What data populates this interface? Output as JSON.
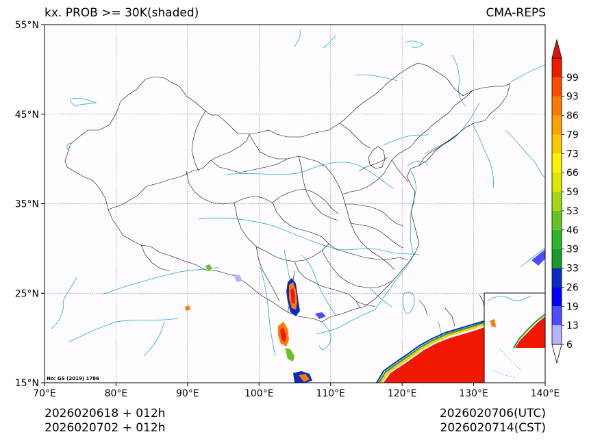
{
  "title_left": "kx. PROB >= 30K(shaded)",
  "title_right": "CMA-REPS",
  "map": {
    "lon_range": [
      70,
      140
    ],
    "lat_range": [
      15,
      55
    ],
    "lon_ticks": [
      "70°E",
      "80°E",
      "90°E",
      "100°E",
      "110°E",
      "120°E",
      "130°E",
      "140°E"
    ],
    "lat_ticks": [
      "15°N",
      "25°N",
      "35°N",
      "45°N",
      "55°N"
    ],
    "credit": "No: GS (2019) 1786",
    "border_color": "#000000",
    "river_color": "#1ea7d9",
    "grid_color": "#888888"
  },
  "colorbar": {
    "labels": [
      "6",
      "13",
      "19",
      "26",
      "33",
      "39",
      "46",
      "53",
      "59",
      "66",
      "73",
      "79",
      "86",
      "93",
      "99"
    ],
    "colors": [
      "#b3b3ff",
      "#4d4dff",
      "#0000ff",
      "#0a2bbf",
      "#1a9a2a",
      "#2db52a",
      "#66c422",
      "#a6d614",
      "#dde600",
      "#fff200",
      "#ffc800",
      "#ffa000",
      "#ff7a00",
      "#ff4a00",
      "#f01800"
    ],
    "max_color": "#e81010"
  },
  "footer": {
    "init_utc": "2026020618  +  012h",
    "init_cst": "2026020702  +  012h",
    "valid_utc": "2026020706(UTC)",
    "valid_cst": "2026020714(CST)"
  }
}
